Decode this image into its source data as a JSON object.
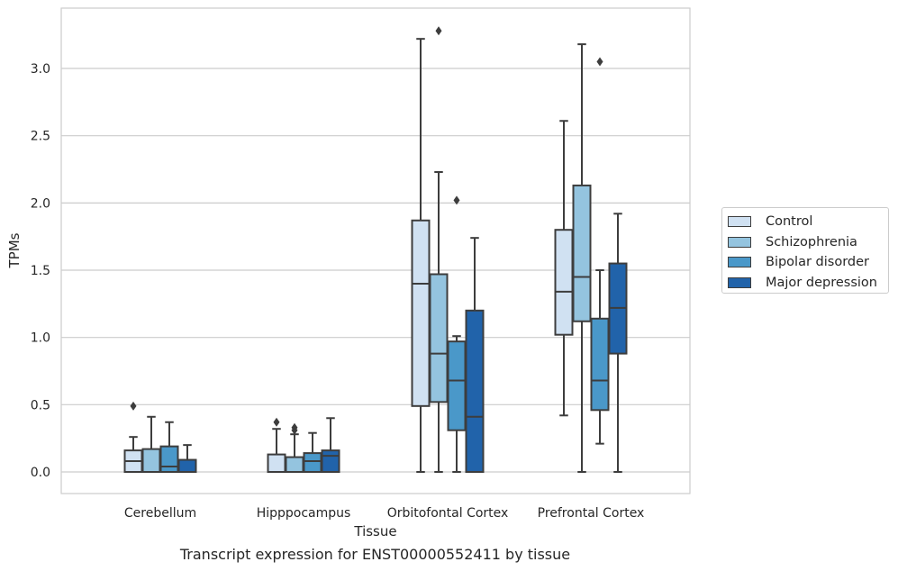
{
  "chart_data": {
    "type": "box",
    "caption": "Transcript expression for ENST00000552411 by tissue",
    "xlabel": "Tissue",
    "ylabel": "TPMs",
    "ylim": [
      -0.16,
      3.46
    ],
    "yticks": [
      "0.0",
      "0.5",
      "1.0",
      "1.5",
      "2.0",
      "2.5",
      "3.0"
    ],
    "ytick_values": [
      0.0,
      0.5,
      1.0,
      1.5,
      2.0,
      2.5,
      3.0
    ],
    "grid": true,
    "legend_position": "right",
    "categories": [
      "Cerebellum",
      "Hipppocampus",
      "Orbitofontal Cortex",
      "Prefrontal Cortex"
    ],
    "series": [
      {
        "name": "Control",
        "color": "#d0e1f2",
        "boxes": [
          {
            "min": 0.0,
            "q1": 0.0,
            "median": 0.08,
            "q3": 0.16,
            "max": 0.26,
            "outliers": [
              0.49
            ]
          },
          {
            "min": 0.0,
            "q1": 0.0,
            "median": 0.0,
            "q3": 0.13,
            "max": 0.32,
            "outliers": [
              0.37
            ]
          },
          {
            "min": 0.0,
            "q1": 0.49,
            "median": 1.4,
            "q3": 1.87,
            "max": 3.22,
            "outliers": []
          },
          {
            "min": 0.42,
            "q1": 1.02,
            "median": 1.34,
            "q3": 1.8,
            "max": 2.61,
            "outliers": []
          }
        ]
      },
      {
        "name": "Schizophrenia",
        "color": "#94c4df",
        "boxes": [
          {
            "min": 0.0,
            "q1": 0.0,
            "median": 0.0,
            "q3": 0.17,
            "max": 0.41,
            "outliers": []
          },
          {
            "min": 0.0,
            "q1": 0.0,
            "median": 0.0,
            "q3": 0.11,
            "max": 0.28,
            "outliers": [
              0.31,
              0.33
            ]
          },
          {
            "min": 0.0,
            "q1": 0.52,
            "median": 0.88,
            "q3": 1.47,
            "max": 2.23,
            "outliers": [
              3.28
            ]
          },
          {
            "min": 0.0,
            "q1": 1.12,
            "median": 1.45,
            "q3": 2.13,
            "max": 3.18,
            "outliers": []
          }
        ]
      },
      {
        "name": "Bipolar disorder",
        "color": "#4a98c9",
        "boxes": [
          {
            "min": 0.0,
            "q1": 0.0,
            "median": 0.04,
            "q3": 0.19,
            "max": 0.37,
            "outliers": []
          },
          {
            "min": 0.0,
            "q1": 0.0,
            "median": 0.08,
            "q3": 0.14,
            "max": 0.29,
            "outliers": []
          },
          {
            "min": 0.0,
            "q1": 0.31,
            "median": 0.68,
            "q3": 0.97,
            "max": 1.01,
            "outliers": [
              2.02
            ]
          },
          {
            "min": 0.21,
            "q1": 0.46,
            "median": 0.68,
            "q3": 1.14,
            "max": 1.5,
            "outliers": [
              3.05
            ]
          }
        ]
      },
      {
        "name": "Major depression",
        "color": "#2163aa",
        "boxes": [
          {
            "min": 0.0,
            "q1": 0.0,
            "median": 0.0,
            "q3": 0.09,
            "max": 0.2,
            "outliers": []
          },
          {
            "min": 0.0,
            "q1": 0.0,
            "median": 0.12,
            "q3": 0.16,
            "max": 0.4,
            "outliers": []
          },
          {
            "min": 0.0,
            "q1": 0.0,
            "median": 0.41,
            "q3": 1.2,
            "max": 1.74,
            "outliers": []
          },
          {
            "min": 0.0,
            "q1": 0.88,
            "median": 1.22,
            "q3": 1.55,
            "max": 1.92,
            "outliers": []
          }
        ]
      }
    ]
  }
}
